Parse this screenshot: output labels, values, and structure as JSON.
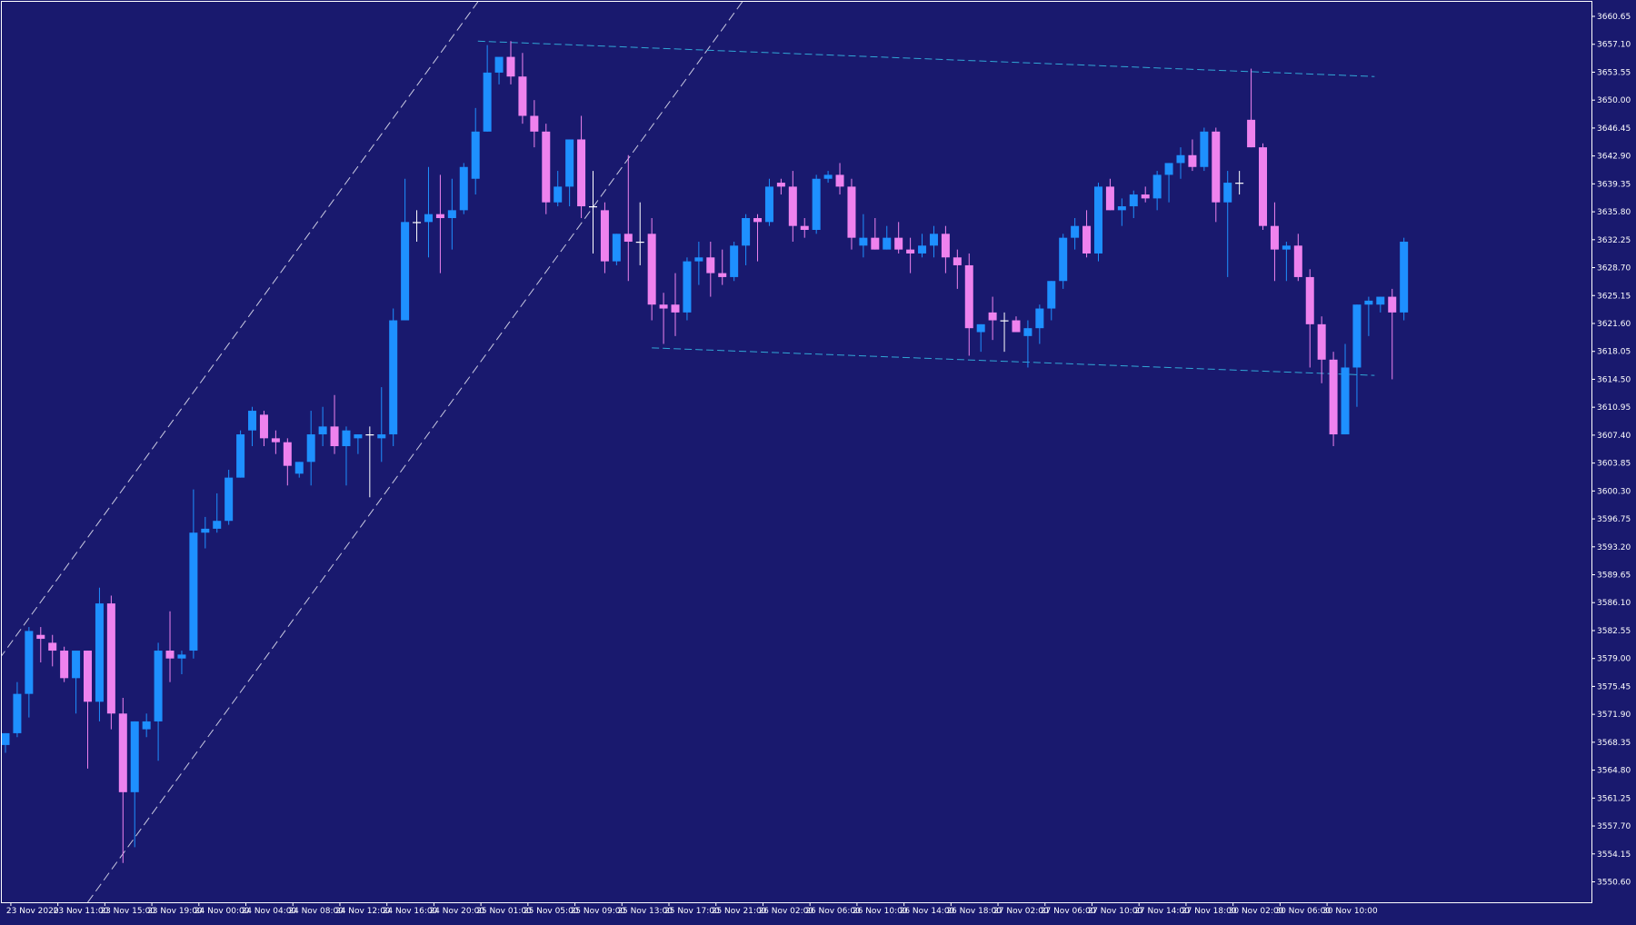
{
  "colors": {
    "background": "#19196e",
    "frame": "#ffffff",
    "bull": "#1e90ff",
    "bear": "#ee82ee",
    "doji": "#ffffff",
    "channel_line": "#c8c8e0",
    "range_line": "#31a7d6",
    "axis_text": "#ffffff"
  },
  "chart_data": {
    "type": "candlestick",
    "title": "",
    "xlabel": "",
    "ylabel": "",
    "grid": false,
    "ylim": [
      3548.0,
      3662.5
    ],
    "y_ticks": [
      "3660.65",
      "3657.10",
      "3653.55",
      "3650.00",
      "3646.45",
      "3642.90",
      "3639.35",
      "3635.80",
      "3632.25",
      "3628.70",
      "3625.15",
      "3621.60",
      "3618.05",
      "3614.50",
      "3610.95",
      "3607.40",
      "3603.85",
      "3600.30",
      "3596.75",
      "3593.20",
      "3589.65",
      "3586.10",
      "3582.55",
      "3579.00",
      "3575.45",
      "3571.90",
      "3568.35",
      "3564.80",
      "3561.25",
      "3557.70",
      "3554.15",
      "3550.60"
    ],
    "x_ticks": [
      {
        "label": "23 Nov 2020",
        "bar": 1
      },
      {
        "label": "23 Nov 11:00",
        "bar": 5
      },
      {
        "label": "23 Nov 15:00",
        "bar": 9
      },
      {
        "label": "23 Nov 19:00",
        "bar": 13
      },
      {
        "label": "24 Nov 00:00",
        "bar": 17
      },
      {
        "label": "24 Nov 04:00",
        "bar": 21
      },
      {
        "label": "24 Nov 08:00",
        "bar": 25
      },
      {
        "label": "24 Nov 12:00",
        "bar": 29
      },
      {
        "label": "24 Nov 16:00",
        "bar": 33
      },
      {
        "label": "24 Nov 20:00",
        "bar": 37
      },
      {
        "label": "25 Nov 01:00",
        "bar": 41
      },
      {
        "label": "25 Nov 05:00",
        "bar": 45
      },
      {
        "label": "25 Nov 09:00",
        "bar": 49
      },
      {
        "label": "25 Nov 13:00",
        "bar": 53
      },
      {
        "label": "25 Nov 17:00",
        "bar": 57
      },
      {
        "label": "25 Nov 21:00",
        "bar": 61
      },
      {
        "label": "26 Nov 02:00",
        "bar": 65
      },
      {
        "label": "26 Nov 06:00",
        "bar": 69
      },
      {
        "label": "26 Nov 10:00",
        "bar": 73
      },
      {
        "label": "26 Nov 14:00",
        "bar": 77
      },
      {
        "label": "26 Nov 18:00",
        "bar": 81
      },
      {
        "label": "27 Nov 02:00",
        "bar": 85
      },
      {
        "label": "27 Nov 06:00",
        "bar": 89
      },
      {
        "label": "27 Nov 10:00",
        "bar": 93
      },
      {
        "label": "27 Nov 14:00",
        "bar": 97
      },
      {
        "label": "27 Nov 18:00",
        "bar": 101
      },
      {
        "label": "30 Nov 02:00",
        "bar": 105
      },
      {
        "label": "30 Nov 06:00",
        "bar": 109
      },
      {
        "label": "30 Nov 10:00",
        "bar": 113
      }
    ],
    "series": [
      {
        "ohlc": [
          [
            3568.0,
            3569.5,
            3567.0,
            3569.5
          ],
          [
            3569.5,
            3576.0,
            3569.0,
            3574.5
          ],
          [
            3574.5,
            3583.0,
            3571.5,
            3582.5
          ],
          [
            3582.0,
            3583.0,
            3578.5,
            3581.5
          ],
          [
            3581.0,
            3582.0,
            3578.0,
            3580.0
          ],
          [
            3580.0,
            3580.5,
            3576.0,
            3576.5
          ],
          [
            3576.5,
            3580.0,
            3572.0,
            3580.0
          ],
          [
            3580.0,
            3580.0,
            3565.0,
            3573.5
          ],
          [
            3573.5,
            3588.0,
            3571.0,
            3586.0
          ],
          [
            3586.0,
            3587.0,
            3570.0,
            3572.0
          ],
          [
            3572.0,
            3574.0,
            3553.0,
            3562.0
          ],
          [
            3562.0,
            3571.0,
            3555.0,
            3571.0
          ],
          [
            3570.0,
            3572.0,
            3569.0,
            3571.0
          ],
          [
            3571.0,
            3581.0,
            3566.0,
            3580.0
          ],
          [
            3580.0,
            3585.0,
            3576.0,
            3579.0
          ],
          [
            3579.0,
            3580.0,
            3577.0,
            3579.5
          ],
          [
            3580.0,
            3600.5,
            3579.0,
            3595.0
          ],
          [
            3595.0,
            3597.0,
            3593.0,
            3595.5
          ],
          [
            3595.5,
            3600.0,
            3595.0,
            3596.5
          ],
          [
            3596.5,
            3603.0,
            3596.0,
            3602.0
          ],
          [
            3602.0,
            3608.0,
            3602.0,
            3607.5
          ],
          [
            3608.0,
            3611.0,
            3606.0,
            3610.5
          ],
          [
            3610.0,
            3610.5,
            3606.0,
            3607.0
          ],
          [
            3607.0,
            3608.0,
            3605.0,
            3606.5
          ],
          [
            3606.5,
            3607.0,
            3601.0,
            3603.5
          ],
          [
            3602.5,
            3604.0,
            3602.0,
            3604.0
          ],
          [
            3604.0,
            3610.5,
            3601.0,
            3607.5
          ],
          [
            3607.5,
            3611.0,
            3606.0,
            3608.5
          ],
          [
            3608.5,
            3612.5,
            3605.0,
            3606.0
          ],
          [
            3606.0,
            3608.5,
            3601.0,
            3608.0
          ],
          [
            3607.0,
            3607.5,
            3605.0,
            3607.5
          ],
          [
            3607.5,
            3608.5,
            3599.5,
            3607.5
          ],
          [
            3607.0,
            3613.5,
            3604.0,
            3607.5
          ],
          [
            3607.5,
            3623.5,
            3606.0,
            3622.0
          ],
          [
            3622.0,
            3640.0,
            3622.0,
            3634.5
          ],
          [
            3634.5,
            3636.0,
            3632.0,
            3634.5
          ],
          [
            3634.5,
            3641.5,
            3630.0,
            3635.5
          ],
          [
            3635.5,
            3640.5,
            3628.0,
            3635.0
          ],
          [
            3635.0,
            3640.0,
            3631.0,
            3636.0
          ],
          [
            3636.0,
            3642.0,
            3635.5,
            3641.5
          ],
          [
            3640.0,
            3649.0,
            3638.0,
            3646.0
          ],
          [
            3646.0,
            3657.0,
            3646.0,
            3653.5
          ],
          [
            3653.5,
            3655.0,
            3652.0,
            3655.5
          ],
          [
            3655.5,
            3657.5,
            3652.0,
            3653.0
          ],
          [
            3653.0,
            3656.0,
            3647.0,
            3648.0
          ],
          [
            3648.0,
            3650.0,
            3644.0,
            3646.0
          ],
          [
            3646.0,
            3647.0,
            3635.5,
            3637.0
          ],
          [
            3637.0,
            3641.0,
            3636.5,
            3639.0
          ],
          [
            3639.0,
            3645.0,
            3636.5,
            3645.0
          ],
          [
            3645.0,
            3648.0,
            3635.0,
            3636.5
          ],
          [
            3636.5,
            3641.0,
            3630.5,
            3636.5
          ],
          [
            3636.0,
            3637.0,
            3628.0,
            3629.5
          ],
          [
            3629.5,
            3633.0,
            3629.0,
            3633.0
          ],
          [
            3633.0,
            3643.0,
            3627.0,
            3632.0
          ],
          [
            3632.0,
            3637.0,
            3629.0,
            3632.0
          ],
          [
            3633.0,
            3635.0,
            3622.0,
            3624.0
          ],
          [
            3624.0,
            3625.5,
            3619.0,
            3623.5
          ],
          [
            3624.0,
            3628.0,
            3620.0,
            3623.0
          ],
          [
            3623.0,
            3630.0,
            3622.0,
            3629.5
          ],
          [
            3629.5,
            3632.0,
            3626.5,
            3630.0
          ],
          [
            3630.0,
            3632.0,
            3625.0,
            3628.0
          ],
          [
            3628.0,
            3631.0,
            3626.5,
            3627.5
          ],
          [
            3627.5,
            3632.0,
            3627.0,
            3631.5
          ],
          [
            3631.5,
            3635.5,
            3629.0,
            3635.0
          ],
          [
            3635.0,
            3635.5,
            3629.5,
            3634.5
          ],
          [
            3634.5,
            3640.0,
            3634.0,
            3639.0
          ],
          [
            3639.5,
            3640.0,
            3638.0,
            3639.0
          ],
          [
            3639.0,
            3641.0,
            3632.0,
            3634.0
          ],
          [
            3634.0,
            3635.0,
            3632.5,
            3633.5
          ],
          [
            3633.5,
            3640.5,
            3633.0,
            3640.0
          ],
          [
            3640.0,
            3641.0,
            3639.5,
            3640.5
          ],
          [
            3640.5,
            3642.0,
            3638.0,
            3639.0
          ],
          [
            3639.0,
            3640.0,
            3631.0,
            3632.5
          ],
          [
            3631.5,
            3635.5,
            3630.0,
            3632.5
          ],
          [
            3632.5,
            3635.0,
            3631.0,
            3631.0
          ],
          [
            3631.0,
            3634.0,
            3631.0,
            3632.5
          ],
          [
            3632.5,
            3634.5,
            3630.5,
            3631.0
          ],
          [
            3631.0,
            3632.5,
            3628.0,
            3630.5
          ],
          [
            3630.5,
            3633.0,
            3630.0,
            3631.5
          ],
          [
            3631.5,
            3634.0,
            3630.0,
            3633.0
          ],
          [
            3633.0,
            3634.0,
            3628.0,
            3630.0
          ],
          [
            3630.0,
            3631.0,
            3626.0,
            3629.0
          ],
          [
            3629.0,
            3630.5,
            3617.5,
            3621.0
          ],
          [
            3620.5,
            3621.5,
            3618.0,
            3621.5
          ],
          [
            3623.0,
            3625.0,
            3619.5,
            3622.0
          ],
          [
            3622.0,
            3623.0,
            3618.0,
            3622.0
          ],
          [
            3622.0,
            3622.5,
            3620.5,
            3620.5
          ],
          [
            3620.0,
            3622.0,
            3616.0,
            3621.0
          ],
          [
            3621.0,
            3624.0,
            3619.0,
            3623.5
          ],
          [
            3623.5,
            3627.0,
            3622.0,
            3627.0
          ],
          [
            3627.0,
            3633.0,
            3626.0,
            3632.5
          ],
          [
            3632.5,
            3635.0,
            3631.0,
            3634.0
          ],
          [
            3634.0,
            3636.0,
            3630.0,
            3630.5
          ],
          [
            3630.5,
            3639.5,
            3629.5,
            3639.0
          ],
          [
            3639.0,
            3640.0,
            3636.0,
            3636.0
          ],
          [
            3636.0,
            3637.5,
            3634.0,
            3636.5
          ],
          [
            3636.5,
            3638.5,
            3635.0,
            3638.0
          ],
          [
            3638.0,
            3639.0,
            3637.0,
            3637.5
          ],
          [
            3637.5,
            3641.0,
            3636.0,
            3640.5
          ],
          [
            3640.5,
            3642.0,
            3637.0,
            3642.0
          ],
          [
            3642.0,
            3644.0,
            3640.0,
            3643.0
          ],
          [
            3643.0,
            3645.0,
            3641.0,
            3641.5
          ],
          [
            3641.5,
            3646.5,
            3641.0,
            3646.0
          ],
          [
            3646.0,
            3646.5,
            3634.5,
            3637.0
          ],
          [
            3637.0,
            3641.0,
            3627.5,
            3639.5
          ],
          [
            3639.5,
            3641.0,
            3638.0,
            3639.5
          ],
          [
            3647.5,
            3654.0,
            3644.0,
            3644.0
          ],
          [
            3644.0,
            3644.5,
            3633.5,
            3634.0
          ],
          [
            3634.0,
            3637.0,
            3627.0,
            3631.0
          ],
          [
            3631.0,
            3632.0,
            3627.0,
            3631.5
          ],
          [
            3631.5,
            3633.0,
            3627.0,
            3627.5
          ],
          [
            3627.5,
            3628.5,
            3616.0,
            3621.5
          ],
          [
            3621.5,
            3622.5,
            3614.0,
            3617.0
          ],
          [
            3617.0,
            3618.0,
            3606.0,
            3607.5
          ],
          [
            3607.5,
            3619.0,
            3607.5,
            3616.0
          ],
          [
            3616.0,
            3624.0,
            3611.0,
            3624.0
          ],
          [
            3624.0,
            3625.0,
            3620.0,
            3624.5
          ],
          [
            3624.0,
            3625.0,
            3623.0,
            3625.0
          ],
          [
            3625.0,
            3626.0,
            3614.5,
            3623.0
          ],
          [
            3623.0,
            3632.5,
            3622.0,
            3632.0
          ]
        ]
      }
    ],
    "drawings": [
      {
        "kind": "channel_upper",
        "from": [
          -0.5,
          3579.0
        ],
        "to": [
          40.2,
          3662.5
        ]
      },
      {
        "kind": "channel_lower",
        "from": [
          7.0,
          3548.0
        ],
        "to": [
          62.7,
          3662.5
        ]
      },
      {
        "kind": "range_top",
        "from": [
          40.2,
          3657.5
        ],
        "to": [
          116.5,
          3653.0
        ]
      },
      {
        "kind": "range_bottom",
        "from": [
          55.0,
          3618.5
        ],
        "to": [
          116.5,
          3615.0
        ]
      }
    ]
  }
}
